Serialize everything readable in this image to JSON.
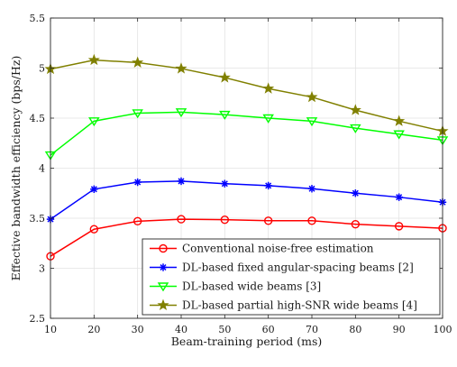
{
  "chart_data": {
    "type": "line",
    "xlabel": "Beam-training period (ms)",
    "ylabel": "Effective bandwidth efficiency (bps/Hz)",
    "x": [
      10,
      20,
      30,
      40,
      50,
      60,
      70,
      80,
      90,
      100
    ],
    "xticks": [
      "10",
      "20",
      "30",
      "40",
      "50",
      "60",
      "70",
      "80",
      "90",
      "100"
    ],
    "yticks": [
      "2.5",
      "3",
      "3.5",
      "4",
      "4.5",
      "5",
      "5.5"
    ],
    "xlim": [
      10,
      100
    ],
    "ylim": [
      2.5,
      5.5
    ],
    "grid": true,
    "legend_position": "bottom-right",
    "series": [
      {
        "name": "Conventional noise-free estimation",
        "color": "#ff0000",
        "marker": "circle",
        "values": [
          3.12,
          3.39,
          3.47,
          3.49,
          3.485,
          3.475,
          3.475,
          3.44,
          3.42,
          3.4
        ]
      },
      {
        "name": "DL-based fixed angular-spacing beams [2]",
        "color": "#0000ff",
        "marker": "asterisk",
        "values": [
          3.49,
          3.79,
          3.86,
          3.87,
          3.845,
          3.825,
          3.795,
          3.75,
          3.71,
          3.66
        ]
      },
      {
        "name": "DL-based wide beams [3]",
        "color": "#00ff00",
        "marker": "triangle-down",
        "values": [
          4.13,
          4.47,
          4.55,
          4.56,
          4.535,
          4.5,
          4.47,
          4.4,
          4.34,
          4.28
        ]
      },
      {
        "name": "DL-based partial high-SNR wide beams [4]",
        "color": "#808000",
        "marker": "star",
        "values": [
          4.99,
          5.08,
          5.055,
          4.995,
          4.905,
          4.795,
          4.71,
          4.58,
          4.47,
          4.37
        ]
      }
    ]
  }
}
